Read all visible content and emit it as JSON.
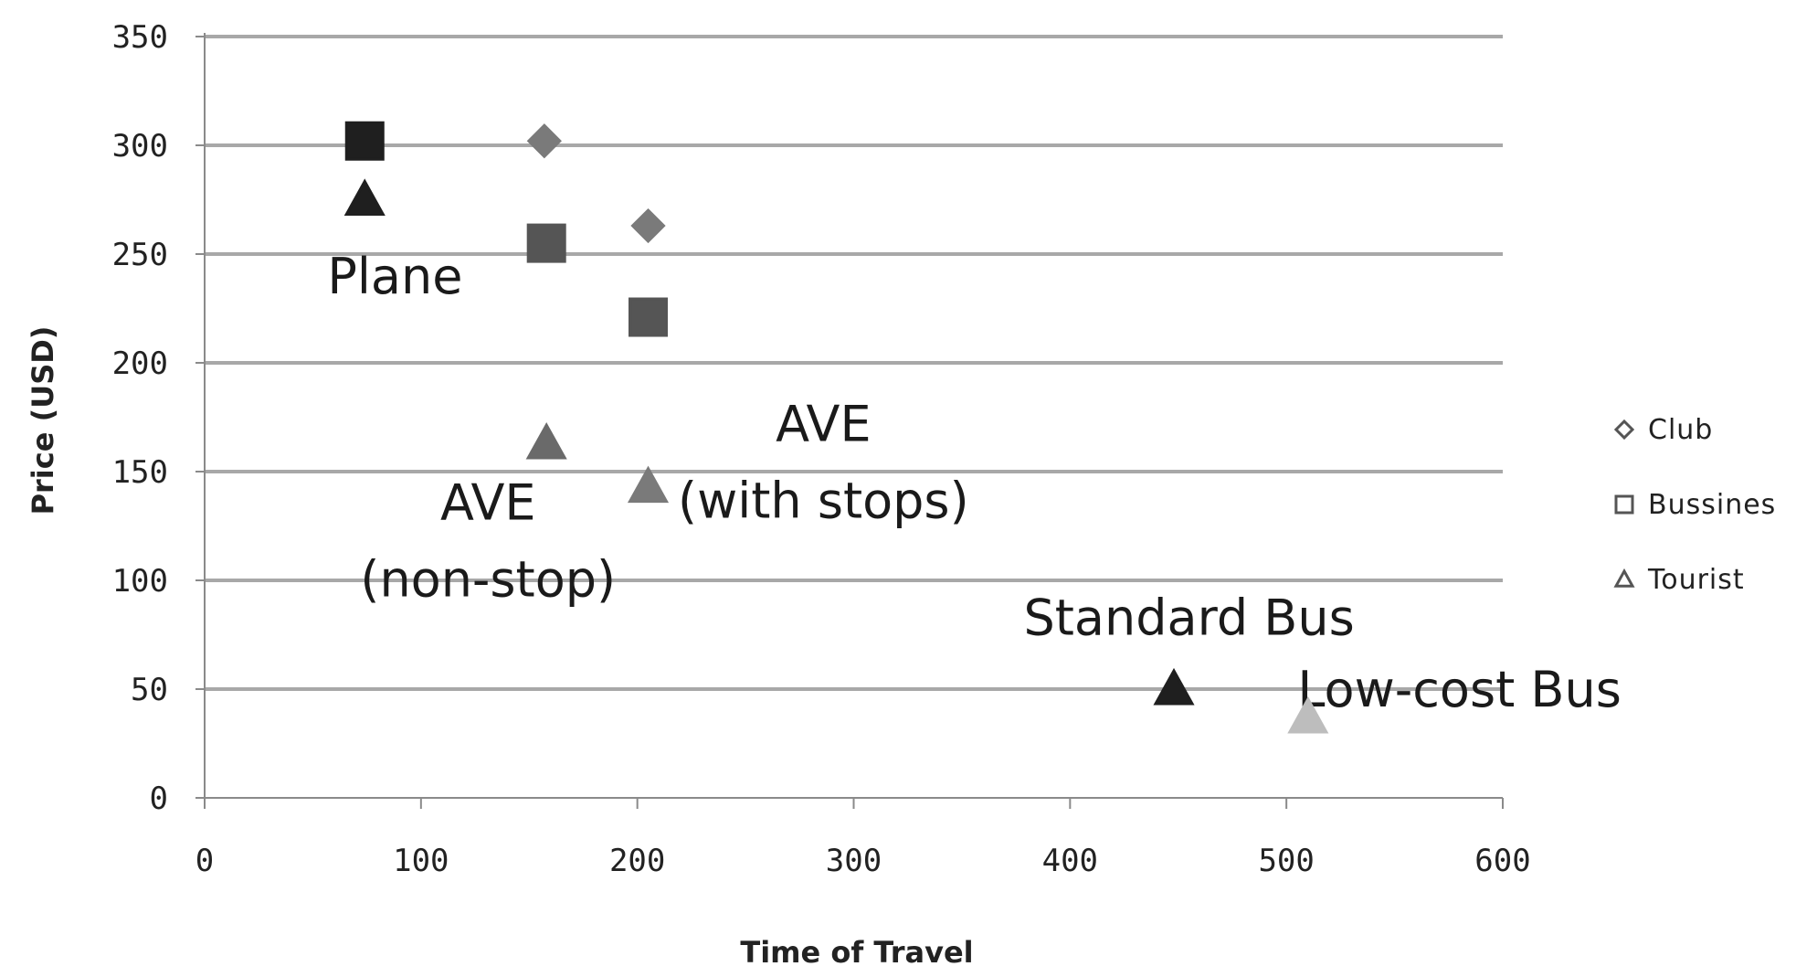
{
  "chart_data": {
    "type": "scatter",
    "title": "",
    "xlabel": "Time of Travel",
    "ylabel": "Price (USD)",
    "xlim": [
      0,
      600
    ],
    "ylim": [
      0,
      350
    ],
    "x_ticks": [
      0,
      100,
      200,
      300,
      400,
      500,
      600
    ],
    "y_ticks": [
      0,
      50,
      100,
      150,
      200,
      250,
      300,
      350
    ],
    "grid": "horizontal",
    "legend_position": "right",
    "series": [
      {
        "name": "Club",
        "marker": "diamond",
        "points": [
          {
            "x": 157,
            "y": 302,
            "color": "#7a7a7a"
          },
          {
            "x": 205,
            "y": 263,
            "color": "#7a7a7a"
          }
        ]
      },
      {
        "name": "Bussines",
        "marker": "square",
        "points": [
          {
            "x": 74,
            "y": 302,
            "color": "#1f1f1f"
          },
          {
            "x": 158,
            "y": 255,
            "color": "#555555"
          },
          {
            "x": 205,
            "y": 221,
            "color": "#555555"
          }
        ]
      },
      {
        "name": "Tourist",
        "marker": "triangle",
        "points": [
          {
            "x": 74,
            "y": 275,
            "color": "#1f1f1f"
          },
          {
            "x": 158,
            "y": 163,
            "color": "#6a6a6a"
          },
          {
            "x": 205,
            "y": 143,
            "color": "#7a7a7a"
          },
          {
            "x": 448,
            "y": 50,
            "color": "#1f1f1f"
          },
          {
            "x": 510,
            "y": 37,
            "color": "#bdbdbd"
          }
        ]
      }
    ],
    "annotations": [
      {
        "lines": [
          "Plane"
        ],
        "x": 88,
        "y": 232
      },
      {
        "lines": [
          "AVE",
          "(non-stop)"
        ],
        "x": 131,
        "y": 128
      },
      {
        "lines": [
          "AVE",
          "(with stops)"
        ],
        "x": 286,
        "y": 164
      },
      {
        "lines": [
          "Standard Bus"
        ],
        "x": 455,
        "y": 75
      },
      {
        "lines": [
          "Low-cost Bus"
        ],
        "x": 580,
        "y": 42
      }
    ]
  }
}
